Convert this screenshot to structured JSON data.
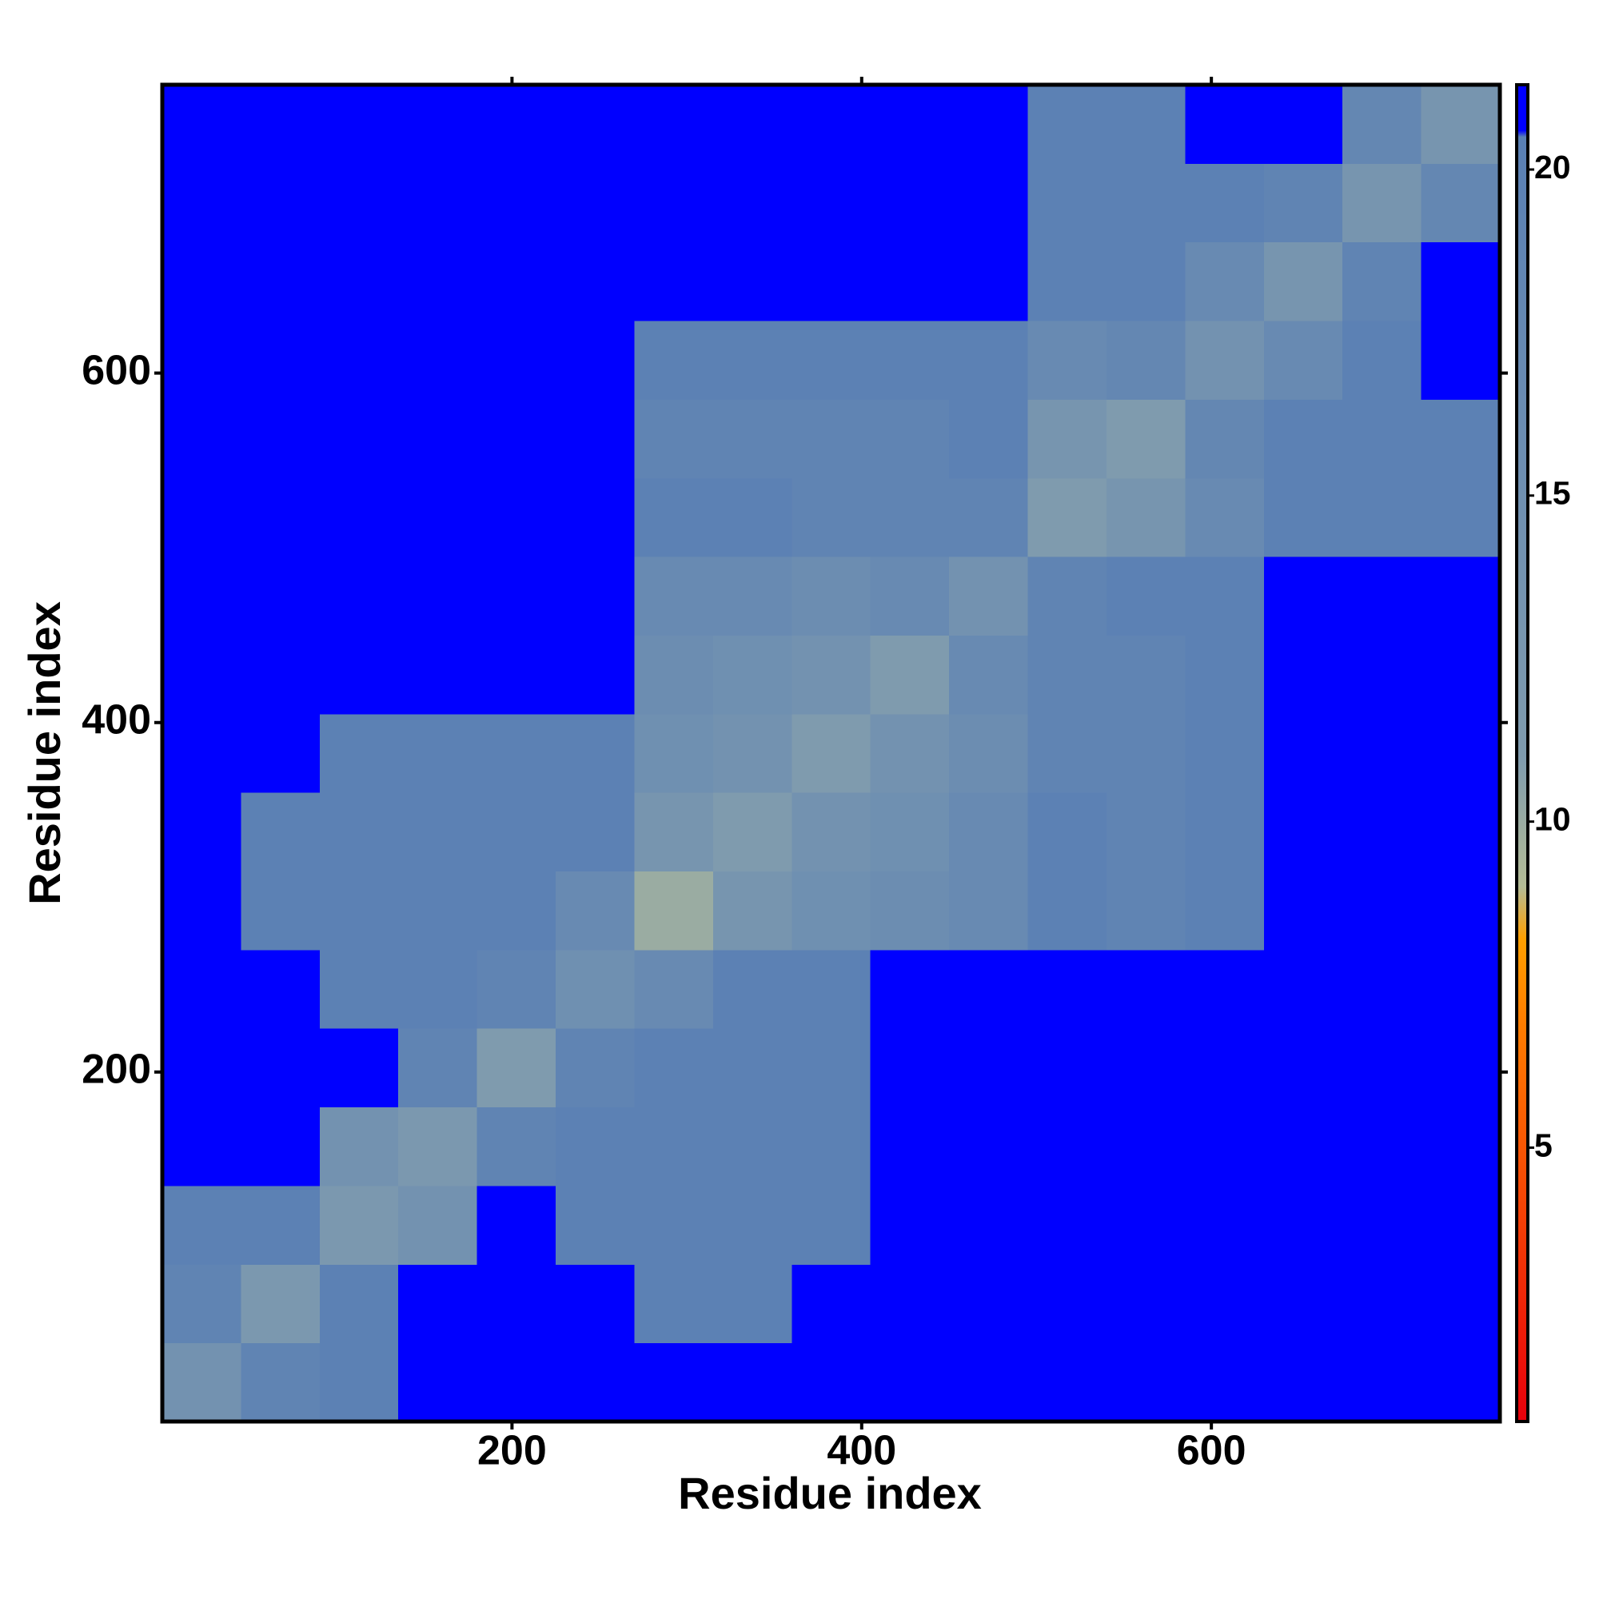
{
  "chart_data": {
    "type": "heatmap",
    "x_label": "Residue index",
    "y_label": "Residue index",
    "bins": [
      0,
      45,
      90,
      135,
      180,
      225,
      270,
      315,
      360,
      405,
      450,
      495,
      540,
      585,
      630,
      675,
      720,
      765
    ],
    "xlim": [
      0,
      765
    ],
    "ylim": [
      0,
      765
    ],
    "xticks": [
      200,
      400,
      600
    ],
    "yticks": [
      200,
      400,
      600
    ],
    "z": [
      [
        14,
        19,
        20,
        21,
        21,
        21,
        21,
        21,
        21,
        21,
        21,
        21,
        21,
        21,
        21,
        21,
        21
      ],
      [
        19,
        12,
        20,
        21,
        21,
        21,
        20,
        20,
        21,
        21,
        21,
        21,
        21,
        21,
        21,
        21,
        21
      ],
      [
        20,
        20,
        12,
        14,
        21,
        20,
        20,
        20,
        20,
        21,
        21,
        21,
        21,
        21,
        21,
        21,
        21
      ],
      [
        21,
        21,
        14,
        12,
        19,
        20,
        20,
        20,
        20,
        21,
        21,
        21,
        21,
        21,
        21,
        21,
        21
      ],
      [
        21,
        21,
        21,
        19,
        11,
        19,
        20,
        20,
        20,
        21,
        21,
        21,
        21,
        21,
        21,
        21,
        21
      ],
      [
        21,
        21,
        20,
        20,
        19,
        15,
        17,
        20,
        20,
        21,
        21,
        21,
        21,
        21,
        21,
        21,
        21
      ],
      [
        21,
        20,
        20,
        20,
        20,
        17,
        10,
        13,
        15,
        16,
        17,
        20,
        19,
        20,
        21,
        21,
        21
      ],
      [
        21,
        20,
        20,
        20,
        20,
        20,
        13,
        11,
        14,
        15,
        17,
        20,
        19,
        20,
        21,
        21,
        21
      ],
      [
        21,
        21,
        20,
        20,
        20,
        20,
        15,
        14,
        11,
        14,
        16,
        19,
        19,
        20,
        21,
        21,
        21
      ],
      [
        21,
        21,
        21,
        21,
        21,
        21,
        16,
        15,
        14,
        11,
        17,
        19,
        19,
        20,
        21,
        21,
        21
      ],
      [
        21,
        21,
        21,
        21,
        21,
        21,
        17,
        17,
        16,
        17,
        14,
        19,
        20,
        20,
        21,
        21,
        21
      ],
      [
        21,
        21,
        21,
        21,
        21,
        21,
        20,
        20,
        19,
        19,
        19,
        11,
        13,
        17,
        20,
        20,
        20
      ],
      [
        21,
        21,
        21,
        21,
        21,
        21,
        19,
        19,
        19,
        19,
        20,
        13,
        11,
        18,
        20,
        20,
        20
      ],
      [
        21,
        21,
        21,
        21,
        21,
        21,
        20,
        20,
        20,
        20,
        20,
        17,
        18,
        14,
        17,
        20,
        21
      ],
      [
        21,
        21,
        21,
        21,
        21,
        21,
        21,
        21,
        21,
        21,
        21,
        20,
        20,
        17,
        13,
        19,
        21
      ],
      [
        21,
        21,
        21,
        21,
        21,
        21,
        21,
        21,
        21,
        21,
        21,
        20,
        20,
        20,
        19,
        13,
        18
      ],
      [
        21,
        21,
        21,
        21,
        21,
        21,
        21,
        21,
        21,
        21,
        21,
        20,
        20,
        21,
        21,
        18,
        13
      ]
    ],
    "zlim": [
      0.8,
      21.3
    ],
    "zticks": [
      5,
      10,
      15,
      20
    ],
    "colorscale": [
      [
        0.8,
        "#e8000b"
      ],
      [
        7,
        "#ff7f00"
      ],
      [
        8.2,
        "#ffa000"
      ],
      [
        9,
        "#b4bc96"
      ],
      [
        11,
        "#7f9bae"
      ],
      [
        20.5,
        "#5a80b4"
      ],
      [
        20.6,
        "#0000ff"
      ],
      [
        21.3,
        "#0000ff"
      ]
    ]
  }
}
